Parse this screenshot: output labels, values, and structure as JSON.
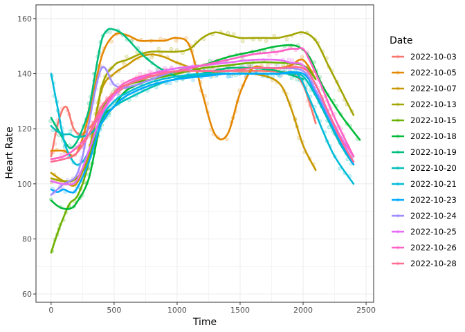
{
  "chart_data": {
    "type": "scatter",
    "xlabel": "Time",
    "ylabel": "Heart Rate",
    "legend_title": "Date",
    "legend_position": "right",
    "xlim": [
      -120,
      2560
    ],
    "ylim": [
      57,
      165
    ],
    "x_ticks": [
      0,
      500,
      1000,
      1500,
      2000,
      2500
    ],
    "y_ticks": [
      60,
      80,
      100,
      120,
      140,
      160
    ],
    "grid": true,
    "series": [
      {
        "name": "2022-10-03",
        "color": "#F8766D",
        "x": [
          0,
          60,
          120,
          180,
          250,
          350,
          450,
          550,
          700,
          900,
          1100,
          1300,
          1500,
          1700,
          1900,
          2000,
          2100
        ],
        "y": [
          110,
          123,
          128,
          120,
          118,
          123,
          130,
          134,
          138,
          140,
          141,
          141,
          141,
          141,
          140,
          136,
          122
        ]
      },
      {
        "name": "2022-10-05",
        "color": "#E58700",
        "x": [
          0,
          100,
          200,
          300,
          400,
          500,
          600,
          700,
          800,
          900,
          1000,
          1100,
          1200,
          1300,
          1400,
          1500,
          1600,
          1700,
          1800,
          1900,
          2000,
          2100
        ],
        "y": [
          112,
          112,
          111,
          125,
          146,
          154,
          154,
          152,
          152,
          152,
          153,
          150,
          133,
          118,
          118,
          133,
          142,
          142,
          142,
          143,
          145,
          138
        ]
      },
      {
        "name": "2022-10-07",
        "color": "#C99800",
        "x": [
          0,
          100,
          200,
          300,
          400,
          500,
          600,
          700,
          800,
          900,
          1000,
          1200,
          1400,
          1600,
          1800,
          1900,
          2000,
          2100
        ],
        "y": [
          104,
          101,
          100,
          112,
          134,
          140,
          143,
          146,
          147,
          146,
          144,
          141,
          140,
          140,
          137,
          128,
          114,
          105
        ]
      },
      {
        "name": "2022-10-13",
        "color": "#A3A500",
        "x": [
          0,
          100,
          200,
          300,
          400,
          500,
          600,
          700,
          800,
          900,
          1000,
          1100,
          1200,
          1300,
          1400,
          1500,
          1600,
          1700,
          1800,
          1900,
          2000,
          2100,
          2200,
          2300,
          2400
        ],
        "y": [
          102,
          101,
          102,
          110,
          135,
          143,
          145,
          147,
          148,
          148,
          148,
          149,
          153,
          155,
          154,
          153,
          153,
          153,
          153,
          154,
          155,
          152,
          143,
          134,
          125
        ]
      },
      {
        "name": "2022-10-15",
        "color": "#6BB100",
        "x": [
          0,
          50,
          100,
          150,
          200,
          250,
          300,
          400,
          500,
          600,
          800,
          1000,
          1200,
          1400,
          1600,
          1800,
          2000,
          2100
        ],
        "y": [
          75,
          82,
          88,
          93,
          95,
          100,
          108,
          126,
          133,
          136,
          138,
          140,
          142,
          143,
          144,
          144,
          143,
          138
        ]
      },
      {
        "name": "2022-10-18",
        "color": "#00BA38",
        "x": [
          0,
          50,
          100,
          150,
          200,
          300,
          400,
          500,
          600,
          800,
          1000,
          1200,
          1400,
          1600,
          1800,
          1950,
          2050,
          2150,
          2300,
          2450
        ],
        "y": [
          94,
          92,
          91,
          91,
          93,
          102,
          123,
          128,
          134,
          138,
          141,
          143,
          146,
          148,
          150,
          150,
          146,
          136,
          125,
          116
        ]
      },
      {
        "name": "2022-10-19",
        "color": "#00BF7D",
        "x": [
          0,
          50,
          100,
          150,
          200,
          250,
          300,
          350,
          400,
          450,
          500,
          550,
          600,
          700,
          800,
          900,
          1000,
          1100,
          1200,
          1400,
          1600,
          1800,
          2000
        ],
        "y": [
          124,
          120,
          116,
          113,
          115,
          120,
          127,
          140,
          152,
          156,
          156,
          155,
          153,
          148,
          144,
          141,
          139,
          139,
          140,
          142,
          142,
          141,
          138
        ]
      },
      {
        "name": "2022-10-20",
        "color": "#00C0B8",
        "x": [
          0,
          50,
          100,
          150,
          200,
          300,
          400,
          500,
          700,
          900,
          1100,
          1300,
          1500,
          1700,
          1900,
          2000,
          2100,
          2200,
          2300,
          2400
        ],
        "y": [
          121,
          119,
          118,
          118,
          117,
          118,
          122,
          128,
          133,
          137,
          139,
          140,
          140,
          140,
          140,
          139,
          132,
          123,
          114,
          107
        ]
      },
      {
        "name": "2022-10-21",
        "color": "#00BCD8",
        "x": [
          0,
          50,
          100,
          150,
          200,
          250,
          300,
          400,
          500,
          600,
          800,
          1000,
          1200,
          1400,
          1600,
          1800,
          1950,
          2050,
          2150,
          2250,
          2400
        ],
        "y": [
          140,
          128,
          116,
          110,
          107,
          108,
          112,
          124,
          130,
          133,
          137,
          139,
          140,
          140,
          140,
          140,
          140,
          131,
          120,
          110,
          100
        ]
      },
      {
        "name": "2022-10-23",
        "color": "#00A9FF",
        "x": [
          0,
          50,
          100,
          150,
          200,
          300,
          400,
          500,
          600,
          800,
          1000,
          1200,
          1400,
          1600,
          1800,
          2000,
          2100,
          2200,
          2300,
          2400
        ],
        "y": [
          98,
          97,
          98,
          97,
          98,
          108,
          122,
          128,
          132,
          136,
          138,
          139,
          140,
          140,
          140,
          140,
          133,
          124,
          115,
          107
        ]
      },
      {
        "name": "2022-10-24",
        "color": "#9F8CFF",
        "x": [
          0,
          50,
          100,
          150,
          200,
          250,
          300,
          400,
          500,
          600,
          800,
          1000,
          1200,
          1400,
          1600,
          1800,
          2000,
          2100,
          2200,
          2300,
          2400
        ],
        "y": [
          96,
          98,
          100,
          101,
          103,
          110,
          122,
          142,
          136,
          135,
          138,
          141,
          141,
          141,
          142,
          142,
          141,
          134,
          125,
          116,
          108
        ]
      },
      {
        "name": "2022-10-25",
        "color": "#E76BF3",
        "x": [
          0,
          100,
          200,
          300,
          400,
          500,
          600,
          800,
          1000,
          1200,
          1400,
          1600,
          1800,
          1900,
          2000,
          2100,
          2200,
          2300,
          2400
        ],
        "y": [
          101,
          100,
          101,
          112,
          125,
          132,
          136,
          140,
          142,
          143,
          144,
          145,
          145,
          144,
          143,
          136,
          126,
          117,
          110
        ]
      },
      {
        "name": "2022-10-26",
        "color": "#FF61C3",
        "x": [
          0,
          100,
          200,
          300,
          400,
          500,
          600,
          800,
          1000,
          1200,
          1400,
          1600,
          1800,
          1900,
          1950,
          2000,
          2050,
          2150,
          2250,
          2400
        ],
        "y": [
          109,
          110,
          113,
          118,
          126,
          133,
          137,
          140,
          141,
          143,
          145,
          147,
          148,
          149,
          149,
          149,
          145,
          135,
          124,
          110
        ]
      },
      {
        "name": "2022-10-28",
        "color": "#FF6C91",
        "x": [
          0,
          100,
          200,
          300,
          400,
          500,
          600,
          800,
          1000,
          1200,
          1400,
          1600,
          1800,
          2000,
          2100,
          2200,
          2300,
          2400
        ],
        "y": [
          108,
          109,
          111,
          118,
          128,
          133,
          136,
          139,
          141,
          141,
          141,
          142,
          142,
          142,
          136,
          126,
          116,
          108
        ]
      }
    ]
  }
}
